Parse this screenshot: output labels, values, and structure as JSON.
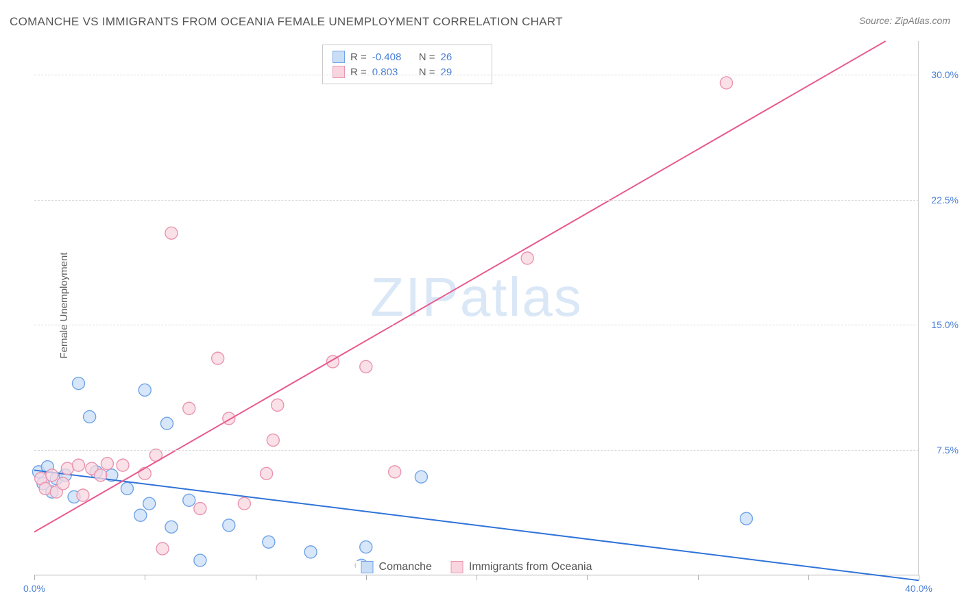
{
  "title": "COMANCHE VS IMMIGRANTS FROM OCEANIA FEMALE UNEMPLOYMENT CORRELATION CHART",
  "source": "Source: ZipAtlas.com",
  "y_axis_title": "Female Unemployment",
  "watermark": {
    "prefix": "ZIP",
    "suffix": "atlas"
  },
  "chart": {
    "type": "scatter",
    "xlim": [
      0,
      40
    ],
    "ylim": [
      0,
      32
    ],
    "x_ticks": [
      0,
      5,
      10,
      15,
      20,
      25,
      30,
      35,
      40
    ],
    "x_tick_labels": {
      "0": "0.0%",
      "40": "40.0%"
    },
    "y_ticks": [
      7.5,
      15.0,
      22.5,
      30.0
    ],
    "y_tick_labels": [
      "7.5%",
      "15.0%",
      "22.5%",
      "30.0%"
    ],
    "grid_color": "#d8d8d8",
    "background_color": "#ffffff",
    "marker_radius": 9,
    "marker_stroke_width": 1.4,
    "line_width": 2,
    "series": [
      {
        "name": "Comanche",
        "color_fill": "#c9ddf5",
        "color_stroke": "#6fa3e8",
        "line_color": "#2f73d8",
        "R": "-0.408",
        "N": "26",
        "trend": {
          "x1": 0,
          "y1": 6.3,
          "x2": 40,
          "y2": -0.3
        },
        "points": [
          [
            0.2,
            6.2
          ],
          [
            0.4,
            5.5
          ],
          [
            0.6,
            6.5
          ],
          [
            0.8,
            5.0
          ],
          [
            1.0,
            5.8
          ],
          [
            1.4,
            6.0
          ],
          [
            1.8,
            4.7
          ],
          [
            2.0,
            11.5
          ],
          [
            2.5,
            9.5
          ],
          [
            2.8,
            6.2
          ],
          [
            3.5,
            6.0
          ],
          [
            4.2,
            5.2
          ],
          [
            4.8,
            3.6
          ],
          [
            5.0,
            11.1
          ],
          [
            5.2,
            4.3
          ],
          [
            6.0,
            9.1
          ],
          [
            6.2,
            2.9
          ],
          [
            7.0,
            4.5
          ],
          [
            7.5,
            0.9
          ],
          [
            8.8,
            3.0
          ],
          [
            10.6,
            2.0
          ],
          [
            12.5,
            1.4
          ],
          [
            14.8,
            0.6
          ],
          [
            15.0,
            1.7
          ],
          [
            17.5,
            5.9
          ],
          [
            32.2,
            3.4
          ]
        ]
      },
      {
        "name": "Immigrants from Oceania",
        "color_fill": "#f8d5df",
        "color_stroke": "#ea94b0",
        "line_color": "#e85a8f",
        "R": "0.803",
        "N": "29",
        "trend": {
          "x1": 0,
          "y1": 2.6,
          "x2": 38.5,
          "y2": 32
        },
        "points": [
          [
            0.3,
            5.8
          ],
          [
            0.5,
            5.2
          ],
          [
            0.8,
            6.0
          ],
          [
            1.0,
            5.0
          ],
          [
            1.3,
            5.5
          ],
          [
            1.5,
            6.4
          ],
          [
            2.0,
            6.6
          ],
          [
            2.2,
            4.8
          ],
          [
            2.6,
            6.4
          ],
          [
            3.0,
            6.0
          ],
          [
            3.3,
            6.7
          ],
          [
            4.0,
            6.6
          ],
          [
            5.0,
            6.1
          ],
          [
            5.5,
            7.2
          ],
          [
            5.8,
            1.6
          ],
          [
            6.2,
            20.5
          ],
          [
            7.0,
            10.0
          ],
          [
            7.5,
            4.0
          ],
          [
            8.3,
            13.0
          ],
          [
            8.8,
            9.4
          ],
          [
            9.5,
            4.3
          ],
          [
            10.5,
            6.1
          ],
          [
            10.8,
            8.1
          ],
          [
            11.0,
            10.2
          ],
          [
            13.5,
            12.8
          ],
          [
            15.0,
            12.5
          ],
          [
            16.3,
            6.2
          ],
          [
            22.3,
            19.0
          ],
          [
            31.3,
            29.5
          ]
        ]
      }
    ]
  },
  "stats_legend": {
    "R_label": "R =",
    "N_label": "N ="
  },
  "bottom_legend": {
    "items": [
      "Comanche",
      "Immigrants from Oceania"
    ]
  }
}
